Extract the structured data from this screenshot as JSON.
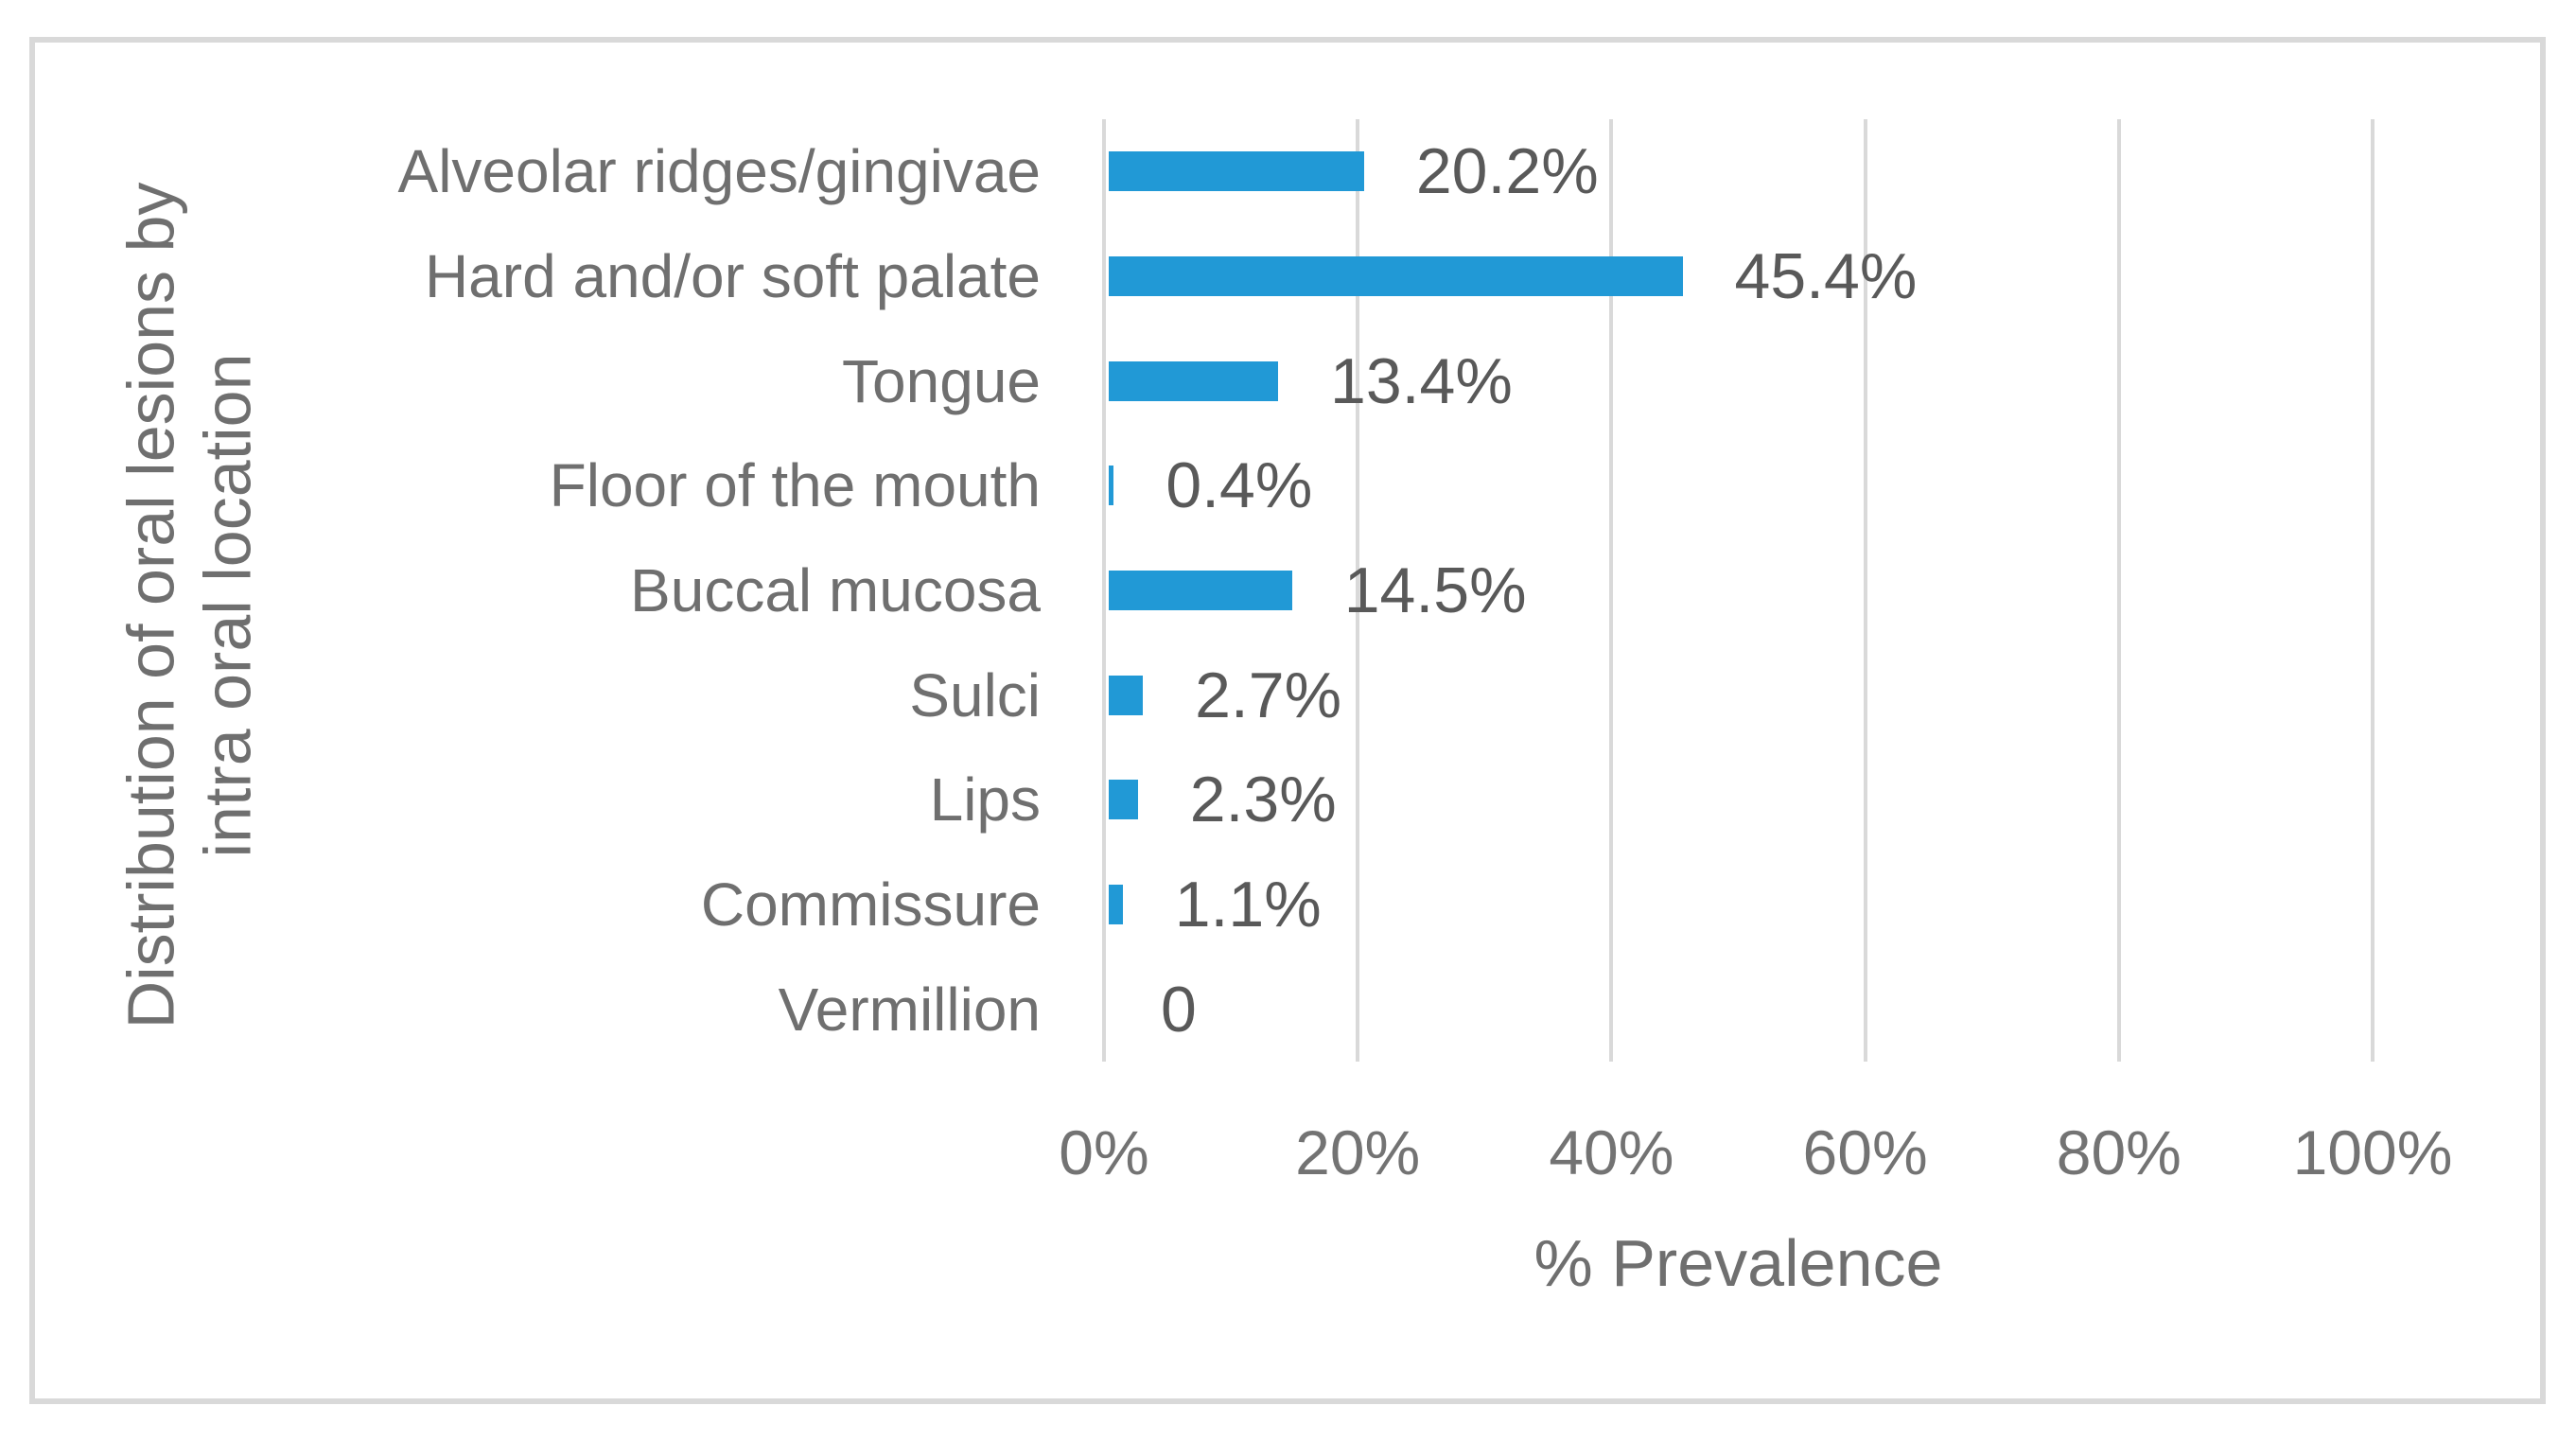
{
  "chart_data": {
    "type": "bar",
    "orientation": "horizontal",
    "categories": [
      "Alveolar ridges/gingivae",
      "Hard and/or soft palate",
      "Tongue",
      "Floor of the mouth",
      "Buccal mucosa",
      "Sulci",
      "Lips",
      "Commissure",
      "Vermillion"
    ],
    "values": [
      20.2,
      45.4,
      13.4,
      0.4,
      14.5,
      2.7,
      2.3,
      1.1,
      0
    ],
    "value_labels": [
      "20.2%",
      "45.4%",
      "13.4%",
      "0.4%",
      "14.5%",
      "2.7%",
      "2.3%",
      "1.1%",
      "0"
    ],
    "xlabel": "% Prevalence",
    "ylabel_lines": [
      "Distribution of oral lesions by",
      "intra oral location"
    ],
    "ylabel": "Distribution of oral lesions by intra oral location",
    "xlim": [
      0,
      100
    ],
    "xticks": [
      0,
      20,
      40,
      60,
      80,
      100
    ],
    "xtick_labels": [
      "0%",
      "20%",
      "40%",
      "60%",
      "80%",
      "100%"
    ],
    "grid": "vertical-gridlines-on",
    "legend": "none",
    "colors": {
      "bar": "#2199D6",
      "grid": "#D9D9D9",
      "frame": "#D9D9D9",
      "category": "#6F6F6F",
      "tick": "#737373",
      "value": "#595959",
      "axis_title": "#6F6F6F"
    }
  }
}
